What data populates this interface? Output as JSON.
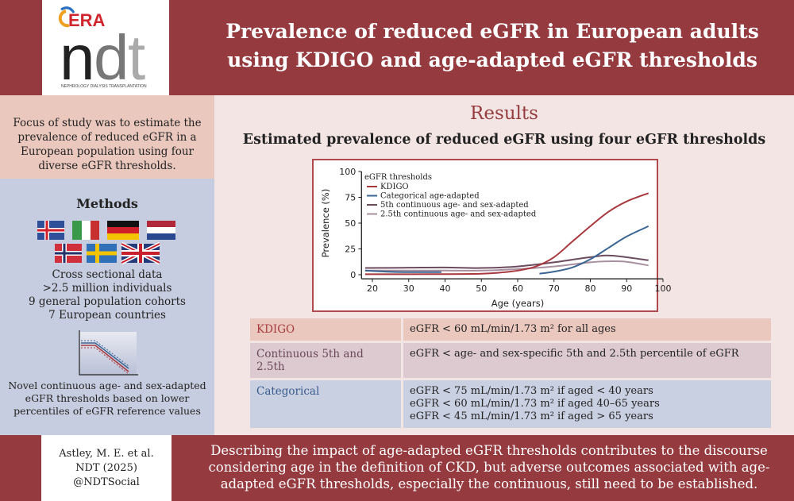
{
  "header": {
    "title_line1": "Prevalence of reduced eGFR in European adults",
    "title_line2": "using KDIGO and age-adapted eGFR thresholds",
    "logo_text": "ERA ndt NEPHROLOGY DIALYSIS TRANSPLANTATION"
  },
  "left": {
    "focus": "Focus of study was to estimate the prevalence of reduced eGFR in a European population using four diverse eGFR thresholds.",
    "methods_title": "Methods",
    "flags": [
      "Iceland",
      "Italy",
      "Germany",
      "Netherlands",
      "Norway",
      "Sweden",
      "United Kingdom"
    ],
    "method_lines": [
      "Cross sectional data",
      ">2.5 million individuals",
      "9 general population cohorts",
      "7 European countries"
    ],
    "novel": "Novel continuous age- and sex-adapted eGFR thresholds based on lower percentiles of eGFR reference values"
  },
  "main": {
    "results_title": "Results",
    "subtitle": "Estimated prevalence of reduced eGFR using four eGFR thresholds",
    "table": [
      {
        "key": "KDIGO",
        "lines": [
          "eGFR < 60 mL/min/1.73 m² for all ages"
        ]
      },
      {
        "key": "Continuous 5th and 2.5th",
        "lines": [
          "eGFR < age- and sex-specific 5th and 2.5th percentile of eGFR"
        ]
      },
      {
        "key": "Categorical",
        "lines": [
          "eGFR < 75 mL/min/1.73 m² if aged < 40 years",
          "eGFR < 60 mL/min/1.73 m² if aged 40–65 years",
          "eGFR < 45 mL/min/1.73 m² if aged > 65 years"
        ]
      }
    ]
  },
  "footer": {
    "cite_line1": "Astley, M. E. et al.",
    "cite_line2": "NDT (2025)",
    "cite_line3": "@NDTSocial",
    "conclusion": "Describing the impact of age-adapted eGFR thresholds contributes to the discourse considering age in the definition of CKD, but adverse outcomes associated with age-adapted eGFR thresholds, especially the continuous, still need to be established."
  },
  "chart_data": {
    "type": "line",
    "xlabel": "Age (years)",
    "ylabel": "Prevalence (%)",
    "xlim": [
      15,
      100
    ],
    "ylim": [
      0,
      100
    ],
    "xticks": [
      20,
      30,
      40,
      50,
      60,
      70,
      80,
      90,
      100
    ],
    "yticks": [
      0,
      25,
      50,
      75,
      100
    ],
    "legend_title": "eGFR thresholds",
    "legend_position": "top-left",
    "grid": false,
    "series": [
      {
        "name": "KDIGO",
        "color": "#a8383d",
        "segments": [
          [
            [
              18,
              0.5
            ],
            [
              30,
              0.5
            ],
            [
              40,
              0.6
            ],
            [
              50,
              1
            ],
            [
              55,
              2
            ],
            [
              60,
              4
            ],
            [
              65,
              8
            ],
            [
              70,
              17
            ],
            [
              75,
              32
            ],
            [
              80,
              47
            ],
            [
              85,
              61
            ],
            [
              90,
              71
            ],
            [
              96,
              79
            ]
          ]
        ]
      },
      {
        "name": "Categorical age-adapted",
        "color": "#3b6592",
        "segments": [
          [
            [
              18,
              4
            ],
            [
              25,
              2.8
            ],
            [
              30,
              2.5
            ],
            [
              39,
              2.5
            ]
          ],
          [
            [
              66,
              1
            ],
            [
              70,
              3
            ],
            [
              75,
              7
            ],
            [
              80,
              15
            ],
            [
              85,
              26
            ],
            [
              90,
              37
            ],
            [
              96,
              47
            ]
          ]
        ]
      },
      {
        "name": "5th continuous age- and sex-adapted",
        "color": "#6d4b5e",
        "segments": [
          [
            [
              18,
              6.5
            ],
            [
              30,
              6.8
            ],
            [
              40,
              7
            ],
            [
              50,
              6.5
            ],
            [
              60,
              8
            ],
            [
              70,
              12
            ],
            [
              80,
              17
            ],
            [
              86,
              18.5
            ],
            [
              96,
              14
            ]
          ]
        ]
      },
      {
        "name": "2.5th continuous age- and sex-adapted",
        "color": "#a990a0",
        "segments": [
          [
            [
              18,
              4
            ],
            [
              30,
              4
            ],
            [
              40,
              4
            ],
            [
              50,
              4
            ],
            [
              60,
              5.5
            ],
            [
              70,
              8
            ],
            [
              80,
              12
            ],
            [
              85,
              13
            ],
            [
              90,
              12.5
            ],
            [
              96,
              9
            ]
          ]
        ]
      }
    ]
  }
}
